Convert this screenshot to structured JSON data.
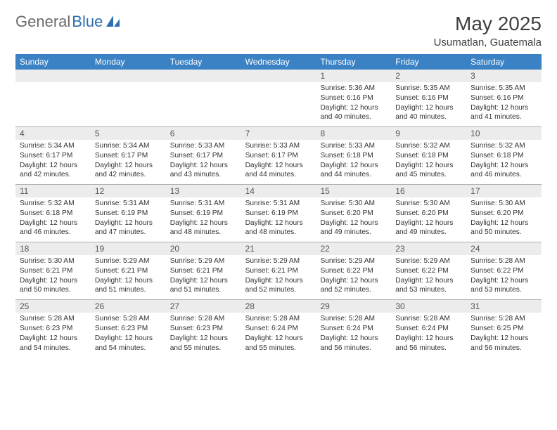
{
  "brand": {
    "general": "General",
    "blue": "Blue"
  },
  "title": "May 2025",
  "location": "Usumatlan, Guatemala",
  "colors": {
    "header_bg": "#3b82c4",
    "header_text": "#ffffff",
    "daynum_bg": "#ececec",
    "text": "#333333",
    "logo_gray": "#6a6a6a",
    "logo_blue": "#2f6fb0",
    "separator": "#b0b0b0"
  },
  "weekdays": [
    "Sunday",
    "Monday",
    "Tuesday",
    "Wednesday",
    "Thursday",
    "Friday",
    "Saturday"
  ],
  "weeks": [
    [
      {
        "n": "",
        "sunrise": "",
        "sunset": "",
        "dl1": "",
        "dl2": ""
      },
      {
        "n": "",
        "sunrise": "",
        "sunset": "",
        "dl1": "",
        "dl2": ""
      },
      {
        "n": "",
        "sunrise": "",
        "sunset": "",
        "dl1": "",
        "dl2": ""
      },
      {
        "n": "",
        "sunrise": "",
        "sunset": "",
        "dl1": "",
        "dl2": ""
      },
      {
        "n": "1",
        "sunrise": "Sunrise: 5:36 AM",
        "sunset": "Sunset: 6:16 PM",
        "dl1": "Daylight: 12 hours",
        "dl2": "and 40 minutes."
      },
      {
        "n": "2",
        "sunrise": "Sunrise: 5:35 AM",
        "sunset": "Sunset: 6:16 PM",
        "dl1": "Daylight: 12 hours",
        "dl2": "and 40 minutes."
      },
      {
        "n": "3",
        "sunrise": "Sunrise: 5:35 AM",
        "sunset": "Sunset: 6:16 PM",
        "dl1": "Daylight: 12 hours",
        "dl2": "and 41 minutes."
      }
    ],
    [
      {
        "n": "4",
        "sunrise": "Sunrise: 5:34 AM",
        "sunset": "Sunset: 6:17 PM",
        "dl1": "Daylight: 12 hours",
        "dl2": "and 42 minutes."
      },
      {
        "n": "5",
        "sunrise": "Sunrise: 5:34 AM",
        "sunset": "Sunset: 6:17 PM",
        "dl1": "Daylight: 12 hours",
        "dl2": "and 42 minutes."
      },
      {
        "n": "6",
        "sunrise": "Sunrise: 5:33 AM",
        "sunset": "Sunset: 6:17 PM",
        "dl1": "Daylight: 12 hours",
        "dl2": "and 43 minutes."
      },
      {
        "n": "7",
        "sunrise": "Sunrise: 5:33 AM",
        "sunset": "Sunset: 6:17 PM",
        "dl1": "Daylight: 12 hours",
        "dl2": "and 44 minutes."
      },
      {
        "n": "8",
        "sunrise": "Sunrise: 5:33 AM",
        "sunset": "Sunset: 6:18 PM",
        "dl1": "Daylight: 12 hours",
        "dl2": "and 44 minutes."
      },
      {
        "n": "9",
        "sunrise": "Sunrise: 5:32 AM",
        "sunset": "Sunset: 6:18 PM",
        "dl1": "Daylight: 12 hours",
        "dl2": "and 45 minutes."
      },
      {
        "n": "10",
        "sunrise": "Sunrise: 5:32 AM",
        "sunset": "Sunset: 6:18 PM",
        "dl1": "Daylight: 12 hours",
        "dl2": "and 46 minutes."
      }
    ],
    [
      {
        "n": "11",
        "sunrise": "Sunrise: 5:32 AM",
        "sunset": "Sunset: 6:18 PM",
        "dl1": "Daylight: 12 hours",
        "dl2": "and 46 minutes."
      },
      {
        "n": "12",
        "sunrise": "Sunrise: 5:31 AM",
        "sunset": "Sunset: 6:19 PM",
        "dl1": "Daylight: 12 hours",
        "dl2": "and 47 minutes."
      },
      {
        "n": "13",
        "sunrise": "Sunrise: 5:31 AM",
        "sunset": "Sunset: 6:19 PM",
        "dl1": "Daylight: 12 hours",
        "dl2": "and 48 minutes."
      },
      {
        "n": "14",
        "sunrise": "Sunrise: 5:31 AM",
        "sunset": "Sunset: 6:19 PM",
        "dl1": "Daylight: 12 hours",
        "dl2": "and 48 minutes."
      },
      {
        "n": "15",
        "sunrise": "Sunrise: 5:30 AM",
        "sunset": "Sunset: 6:20 PM",
        "dl1": "Daylight: 12 hours",
        "dl2": "and 49 minutes."
      },
      {
        "n": "16",
        "sunrise": "Sunrise: 5:30 AM",
        "sunset": "Sunset: 6:20 PM",
        "dl1": "Daylight: 12 hours",
        "dl2": "and 49 minutes."
      },
      {
        "n": "17",
        "sunrise": "Sunrise: 5:30 AM",
        "sunset": "Sunset: 6:20 PM",
        "dl1": "Daylight: 12 hours",
        "dl2": "and 50 minutes."
      }
    ],
    [
      {
        "n": "18",
        "sunrise": "Sunrise: 5:30 AM",
        "sunset": "Sunset: 6:21 PM",
        "dl1": "Daylight: 12 hours",
        "dl2": "and 50 minutes."
      },
      {
        "n": "19",
        "sunrise": "Sunrise: 5:29 AM",
        "sunset": "Sunset: 6:21 PM",
        "dl1": "Daylight: 12 hours",
        "dl2": "and 51 minutes."
      },
      {
        "n": "20",
        "sunrise": "Sunrise: 5:29 AM",
        "sunset": "Sunset: 6:21 PM",
        "dl1": "Daylight: 12 hours",
        "dl2": "and 51 minutes."
      },
      {
        "n": "21",
        "sunrise": "Sunrise: 5:29 AM",
        "sunset": "Sunset: 6:21 PM",
        "dl1": "Daylight: 12 hours",
        "dl2": "and 52 minutes."
      },
      {
        "n": "22",
        "sunrise": "Sunrise: 5:29 AM",
        "sunset": "Sunset: 6:22 PM",
        "dl1": "Daylight: 12 hours",
        "dl2": "and 52 minutes."
      },
      {
        "n": "23",
        "sunrise": "Sunrise: 5:29 AM",
        "sunset": "Sunset: 6:22 PM",
        "dl1": "Daylight: 12 hours",
        "dl2": "and 53 minutes."
      },
      {
        "n": "24",
        "sunrise": "Sunrise: 5:28 AM",
        "sunset": "Sunset: 6:22 PM",
        "dl1": "Daylight: 12 hours",
        "dl2": "and 53 minutes."
      }
    ],
    [
      {
        "n": "25",
        "sunrise": "Sunrise: 5:28 AM",
        "sunset": "Sunset: 6:23 PM",
        "dl1": "Daylight: 12 hours",
        "dl2": "and 54 minutes."
      },
      {
        "n": "26",
        "sunrise": "Sunrise: 5:28 AM",
        "sunset": "Sunset: 6:23 PM",
        "dl1": "Daylight: 12 hours",
        "dl2": "and 54 minutes."
      },
      {
        "n": "27",
        "sunrise": "Sunrise: 5:28 AM",
        "sunset": "Sunset: 6:23 PM",
        "dl1": "Daylight: 12 hours",
        "dl2": "and 55 minutes."
      },
      {
        "n": "28",
        "sunrise": "Sunrise: 5:28 AM",
        "sunset": "Sunset: 6:24 PM",
        "dl1": "Daylight: 12 hours",
        "dl2": "and 55 minutes."
      },
      {
        "n": "29",
        "sunrise": "Sunrise: 5:28 AM",
        "sunset": "Sunset: 6:24 PM",
        "dl1": "Daylight: 12 hours",
        "dl2": "and 56 minutes."
      },
      {
        "n": "30",
        "sunrise": "Sunrise: 5:28 AM",
        "sunset": "Sunset: 6:24 PM",
        "dl1": "Daylight: 12 hours",
        "dl2": "and 56 minutes."
      },
      {
        "n": "31",
        "sunrise": "Sunrise: 5:28 AM",
        "sunset": "Sunset: 6:25 PM",
        "dl1": "Daylight: 12 hours",
        "dl2": "and 56 minutes."
      }
    ]
  ]
}
